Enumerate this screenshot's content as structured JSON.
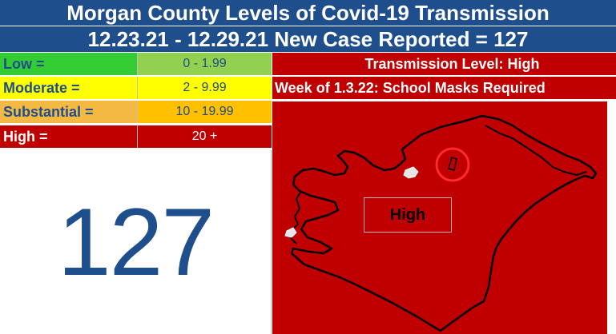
{
  "header": {
    "title": "Morgan County Levels of Covid-19 Transmission",
    "subtitle": "12.23.21 - 12.29.21 New Case Reported = 127"
  },
  "legend": {
    "rows": [
      {
        "label": "Low =",
        "range": "0 - 1.99",
        "label_bg": "#33cc33",
        "range_bg": "#92d050",
        "label_color": "#1f4e8c",
        "range_color": "#1f4e8c"
      },
      {
        "label": "Moderate =",
        "range": "2 - 9.99",
        "label_bg": "#ffff00",
        "range_bg": "#ffff00",
        "label_color": "#1f4e8c",
        "range_color": "#1f4e8c"
      },
      {
        "label": "Substantial =",
        "range": "10 - 19.99",
        "label_bg": "#f4b942",
        "range_bg": "#ffc000",
        "label_color": "#1f4e8c",
        "range_color": "#1f4e8c"
      },
      {
        "label": "High =",
        "range": "20 +",
        "label_bg": "#c00000",
        "range_bg": "#c00000",
        "label_color": "#ffffff",
        "range_color": "#ffffff"
      }
    ]
  },
  "info": {
    "transmission_level": "Transmission Level: High",
    "school_note": "Week of 1.3.22: School Masks Required"
  },
  "count": {
    "value": "127"
  },
  "map": {
    "label": "High",
    "fill_color": "#c00000"
  }
}
